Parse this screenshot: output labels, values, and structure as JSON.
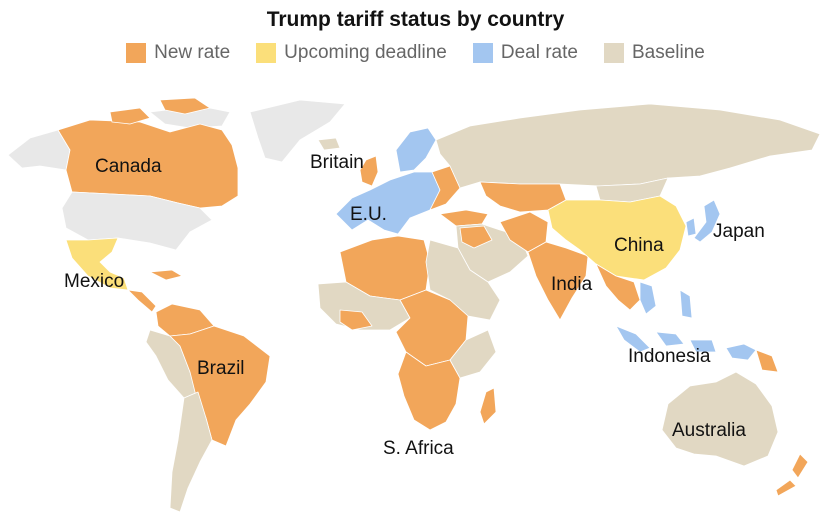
{
  "title": "Trump tariff status by country",
  "legend": [
    {
      "label": "New rate",
      "color": "#f2a65a"
    },
    {
      "label": "Upcoming deadline",
      "color": "#fbdf7a"
    },
    {
      "label": "Deal rate",
      "color": "#a3c6f0"
    },
    {
      "label": "Baseline",
      "color": "#e1d8c3"
    }
  ],
  "no_data_color": "#e8e8e8",
  "labels": {
    "canada": "Canada",
    "britain": "Britain",
    "eu": "E.U.",
    "japan": "Japan",
    "china": "China",
    "mexico": "Mexico",
    "india": "India",
    "brazil": "Brazil",
    "indonesia": "Indonesia",
    "australia": "Australia",
    "safrica": "S. Africa"
  }
}
